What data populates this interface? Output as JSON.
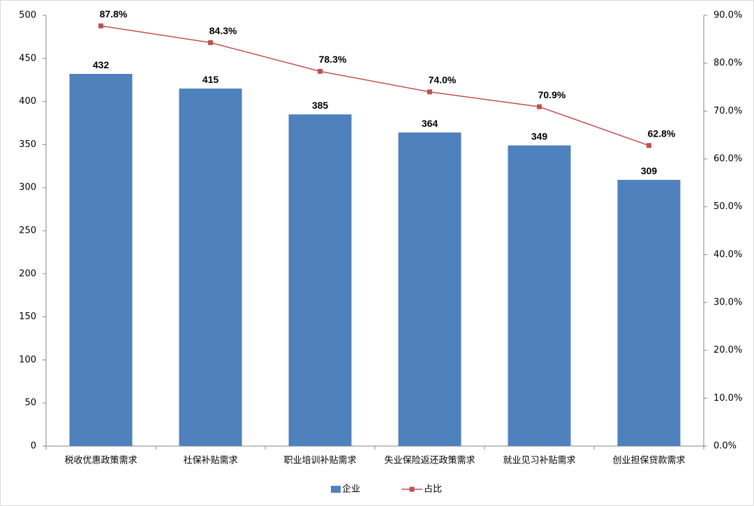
{
  "chart_data": {
    "type": "bar",
    "categories": [
      "税收优惠政策需求",
      "社保补贴需求",
      "职业培训补贴需求",
      "失业保险返还政策需求",
      "就业见习补贴需求",
      "创业担保贷款需求"
    ],
    "series": [
      {
        "name": "企业",
        "type": "bar",
        "color": "#4f81bd",
        "values": [
          432,
          415,
          385,
          364,
          349,
          309
        ]
      },
      {
        "name": "占比",
        "type": "line",
        "axis": "y2",
        "color": "#c0504d",
        "values": [
          87.8,
          84.3,
          78.3,
          74.0,
          70.9,
          62.8
        ],
        "value_labels": [
          "87.8%",
          "84.3%",
          "78.3%",
          "74.0%",
          "70.9%",
          "62.8%"
        ]
      }
    ],
    "ylim": [
      0,
      500
    ],
    "yticks": [
      0,
      50,
      100,
      150,
      200,
      250,
      300,
      350,
      400,
      450,
      500
    ],
    "y2lim": [
      0,
      90
    ],
    "y2ticks": [
      {
        "value": 0,
        "label": "0.0%"
      },
      {
        "value": 10,
        "label": "10.0%"
      },
      {
        "value": 20,
        "label": "20.0%"
      },
      {
        "value": 30,
        "label": "30.0%"
      },
      {
        "value": 40,
        "label": "40.0%"
      },
      {
        "value": 50,
        "label": "50.0%"
      },
      {
        "value": 60,
        "label": "60.0%"
      },
      {
        "value": 70,
        "label": "70.0%"
      },
      {
        "value": 80,
        "label": "80.0%"
      },
      {
        "value": 90,
        "label": "90.0%"
      }
    ],
    "legend": "bottom"
  }
}
